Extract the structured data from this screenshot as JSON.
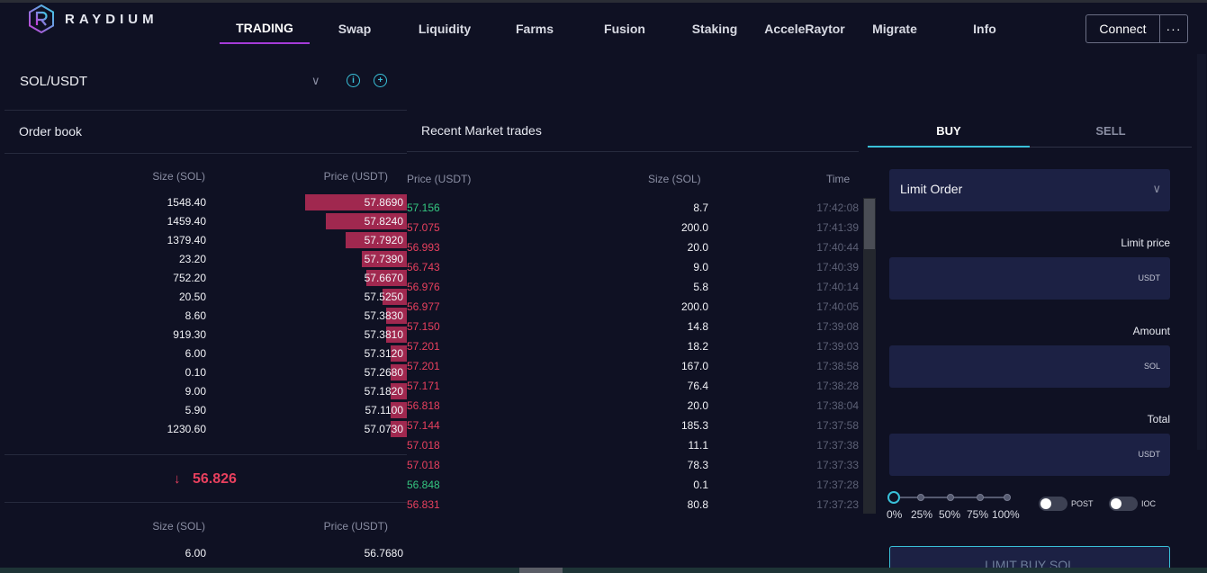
{
  "header": {
    "logo_text": "RAYDIUM",
    "nav": [
      "TRADING",
      "Swap",
      "Liquidity",
      "Farms",
      "Fusion",
      "Staking",
      "AcceleRaytor",
      "Migrate",
      "Info"
    ],
    "active_nav": "TRADING",
    "connect_label": "Connect",
    "more_label": "···"
  },
  "market": {
    "pair": "SOL/USDT"
  },
  "order_book": {
    "title": "Order book",
    "col_size": "Size (SOL)",
    "col_price": "Price (USDT)",
    "asks": [
      {
        "size": "1548.40",
        "price": "57.8690",
        "depth": 0.25
      },
      {
        "size": "1459.40",
        "price": "57.8240",
        "depth": 0.2
      },
      {
        "size": "1379.40",
        "price": "57.7920",
        "depth": 0.15
      },
      {
        "size": "23.20",
        "price": "57.7390",
        "depth": 0.11
      },
      {
        "size": "752.20",
        "price": "57.6670",
        "depth": 0.1
      },
      {
        "size": "20.50",
        "price": "57.5250",
        "depth": 0.06
      },
      {
        "size": "8.60",
        "price": "57.3830",
        "depth": 0.05
      },
      {
        "size": "919.30",
        "price": "57.3810",
        "depth": 0.05
      },
      {
        "size": "6.00",
        "price": "57.3120",
        "depth": 0.04
      },
      {
        "size": "0.10",
        "price": "57.2680",
        "depth": 0.04
      },
      {
        "size": "9.00",
        "price": "57.1820",
        "depth": 0.04
      },
      {
        "size": "5.90",
        "price": "57.1100",
        "depth": 0.04
      },
      {
        "size": "1230.60",
        "price": "57.0730",
        "depth": 0.04
      }
    ],
    "last_price": "56.826",
    "bids_col_size": "Size (SOL)",
    "bids_col_price": "Price (USDT)",
    "bids": [
      {
        "size": "6.00",
        "price": "56.7680"
      }
    ]
  },
  "recent_trades": {
    "title": "Recent Market trades",
    "col_price": "Price (USDT)",
    "col_size": "Size (SOL)",
    "col_time": "Time",
    "rows": [
      {
        "price": "57.156",
        "size": "8.7",
        "time": "17:42:08",
        "side": "up"
      },
      {
        "price": "57.075",
        "size": "200.0",
        "time": "17:41:39",
        "side": "down"
      },
      {
        "price": "56.993",
        "size": "20.0",
        "time": "17:40:44",
        "side": "down"
      },
      {
        "price": "56.743",
        "size": "9.0",
        "time": "17:40:39",
        "side": "down"
      },
      {
        "price": "56.976",
        "size": "5.8",
        "time": "17:40:14",
        "side": "down"
      },
      {
        "price": "56.977",
        "size": "200.0",
        "time": "17:40:05",
        "side": "down"
      },
      {
        "price": "57.150",
        "size": "14.8",
        "time": "17:39:08",
        "side": "down"
      },
      {
        "price": "57.201",
        "size": "18.2",
        "time": "17:39:03",
        "side": "down"
      },
      {
        "price": "57.201",
        "size": "167.0",
        "time": "17:38:58",
        "side": "down"
      },
      {
        "price": "57.171",
        "size": "76.4",
        "time": "17:38:28",
        "side": "down"
      },
      {
        "price": "56.818",
        "size": "20.0",
        "time": "17:38:04",
        "side": "down"
      },
      {
        "price": "57.144",
        "size": "185.3",
        "time": "17:37:58",
        "side": "down"
      },
      {
        "price": "57.018",
        "size": "11.1",
        "time": "17:37:38",
        "side": "down"
      },
      {
        "price": "57.018",
        "size": "78.3",
        "time": "17:37:33",
        "side": "down"
      },
      {
        "price": "56.848",
        "size": "0.1",
        "time": "17:37:28",
        "side": "up"
      },
      {
        "price": "56.831",
        "size": "80.8",
        "time": "17:37:23",
        "side": "down"
      }
    ]
  },
  "order_form": {
    "tab_buy": "BUY",
    "tab_sell": "SELL",
    "order_type": "Limit Order",
    "limit_price_label": "Limit price",
    "limit_price_unit": "USDT",
    "amount_label": "Amount",
    "amount_unit": "SOL",
    "total_label": "Total",
    "total_unit": "USDT",
    "percent_options": [
      "0%",
      "25%",
      "50%",
      "75%",
      "100%"
    ],
    "slider_value": 0,
    "post_label": "POST",
    "ioc_label": "IOC",
    "submit_label": "LIMIT BUY SOL"
  },
  "colors": {
    "background": "#0f1123",
    "ask_bar": "#a0284f",
    "buy_green": "#34c680",
    "sell_red": "#e8405e",
    "accent": "#39c0d8",
    "nav_active": "#a53bd8"
  }
}
